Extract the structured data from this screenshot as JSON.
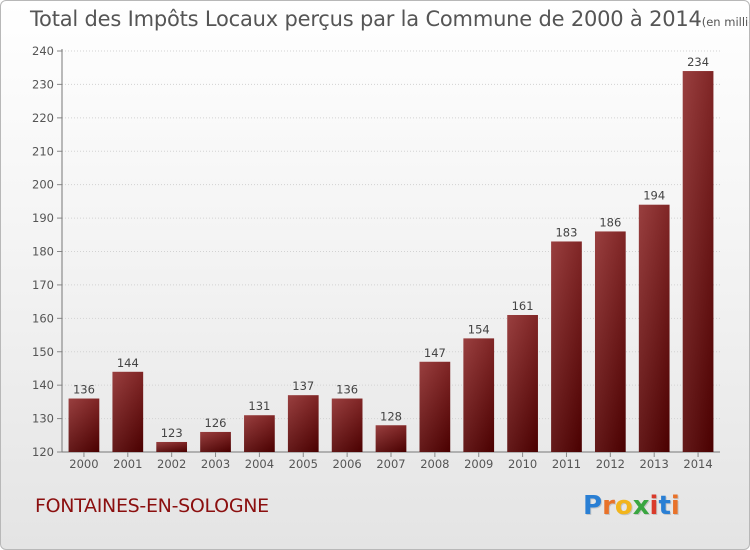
{
  "chart_data": {
    "type": "bar",
    "title": "Total des Impôts Locaux perçus par la Commune de 2000 à 2014",
    "subtitle": "(en milliers d'€)",
    "categories": [
      "2000",
      "2001",
      "2002",
      "2003",
      "2004",
      "2005",
      "2006",
      "2007",
      "2008",
      "2009",
      "2010",
      "2011",
      "2012",
      "2013",
      "2014"
    ],
    "values": [
      136,
      144,
      123,
      126,
      131,
      137,
      136,
      128,
      147,
      154,
      161,
      183,
      186,
      194,
      234
    ],
    "ylim": [
      120,
      240
    ],
    "yticks": [
      120,
      130,
      140,
      150,
      160,
      170,
      180,
      190,
      200,
      210,
      220,
      230,
      240
    ],
    "xlabel": "",
    "ylabel": "",
    "grid": true,
    "bar_color": "#7a1a1a"
  },
  "commune": "FONTAINES-EN-SOLOGNE",
  "logo": {
    "text": "Proxiti",
    "letters": [
      "P",
      "r",
      "o",
      "x",
      "i",
      "t",
      "i"
    ],
    "colors": [
      "#2a7fd4",
      "#e8722a",
      "#f2b51c",
      "#3aa641",
      "#d93a2b",
      "#2a7fd4",
      "#e8722a"
    ]
  }
}
